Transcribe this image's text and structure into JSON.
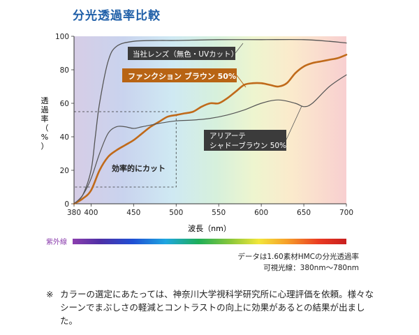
{
  "title": "分光透過率比較",
  "chart_data": {
    "type": "line",
    "xlabel": "波長（nm）",
    "ylabel": "透過率（%）",
    "xlim": [
      380,
      700
    ],
    "ylim": [
      0,
      100
    ],
    "xticks": [
      380,
      400,
      450,
      500,
      550,
      600,
      650,
      700
    ],
    "yticks": [
      0,
      20,
      40,
      60,
      80,
      100
    ],
    "grid": false,
    "background": "visible-spectrum gradient",
    "series": [
      {
        "name": "当社レンズ（無色・UVカット）",
        "color": "#555555",
        "x": [
          380,
          390,
          400,
          405,
          410,
          420,
          430,
          450,
          480,
          500,
          550,
          600,
          650,
          680,
          700
        ],
        "y": [
          0,
          5,
          20,
          40,
          60,
          85,
          94,
          97,
          97.5,
          97.5,
          98,
          98,
          98,
          97,
          96
        ]
      },
      {
        "name": "ファンクション ブラウン 50%",
        "color": "#c06a1a",
        "x": [
          380,
          390,
          400,
          410,
          420,
          430,
          440,
          450,
          460,
          470,
          480,
          490,
          500,
          510,
          520,
          530,
          540,
          550,
          560,
          570,
          580,
          590,
          600,
          610,
          620,
          630,
          640,
          650,
          660,
          670,
          680,
          690,
          700
        ],
        "y": [
          0,
          3,
          8,
          20,
          28,
          32,
          35,
          38,
          42,
          46,
          49,
          52,
          53,
          54,
          55,
          58,
          60,
          60,
          63,
          67,
          71,
          72,
          72,
          71,
          70,
          72,
          78,
          82,
          84,
          85,
          86,
          87,
          89
        ]
      },
      {
        "name": "アリアーテ シャドーブラウン 50%",
        "color": "#555555",
        "x": [
          380,
          390,
          400,
          410,
          420,
          430,
          440,
          450,
          460,
          480,
          500,
          520,
          540,
          560,
          580,
          600,
          620,
          640,
          650,
          660,
          680,
          700
        ],
        "y": [
          0,
          5,
          15,
          30,
          42,
          46,
          46,
          45,
          46,
          48,
          49.5,
          50,
          51,
          53,
          56,
          60,
          62,
          60,
          58,
          60,
          70,
          77
        ]
      }
    ],
    "annotations": [
      {
        "text": "効率的にカット",
        "x": 440,
        "y": 21
      }
    ],
    "annotation_box": {
      "x": [
        380,
        500
      ],
      "y": [
        10,
        55
      ]
    }
  },
  "spectrum_bar": {
    "label": "紫外線"
  },
  "notes": [
    "データは1.60素材HMCの分光透過率",
    "可視光線：380nm〜780nm"
  ],
  "footer": {
    "mark": "※",
    "text": "カラーの選定にあたっては、神奈川大学視科学研究所に心理評価を依頼。様々なシーンでまぶしさの軽減とコントラストの向上に効果があるとの結果が出ました。"
  }
}
